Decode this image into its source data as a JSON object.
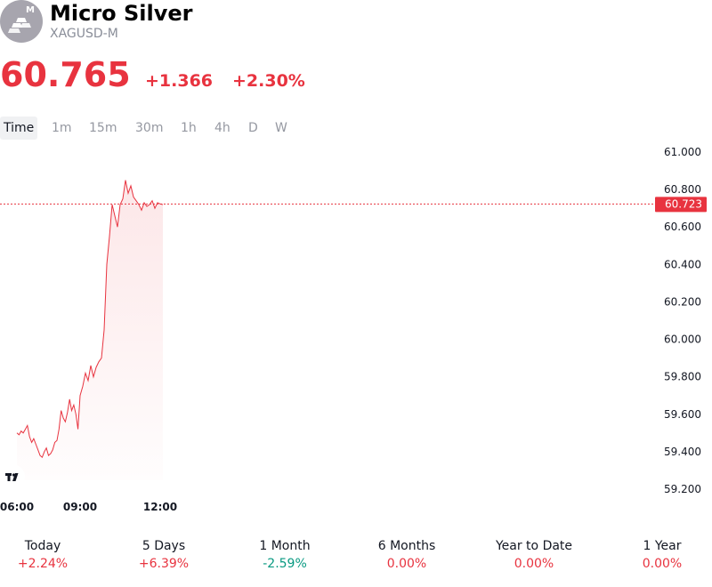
{
  "header": {
    "title": "Micro Silver",
    "symbol": "XAGUSD-M",
    "logo_badge": "M"
  },
  "quote": {
    "price": "60.765",
    "change": "+1.366",
    "change_pct": "+2.30%",
    "color": "#e8333f"
  },
  "tabs": [
    {
      "label": "Time",
      "active": true
    },
    {
      "label": "1m"
    },
    {
      "label": "15m"
    },
    {
      "label": "30m"
    },
    {
      "label": "1h"
    },
    {
      "label": "4h"
    },
    {
      "label": "D"
    },
    {
      "label": "W"
    }
  ],
  "chart_data": {
    "type": "area",
    "x_ticks": [
      "06:00",
      "09:00",
      "12:00"
    ],
    "y_ticks": [
      "61.000",
      "60.800",
      "60.600",
      "60.400",
      "60.200",
      "60.000",
      "59.800",
      "59.600",
      "59.400",
      "59.200"
    ],
    "y_range": [
      59.2,
      61.0
    ],
    "current_label": "60.723",
    "current_value": 60.723,
    "line_color": "#e8333f",
    "series": [
      {
        "x_hours": [
          6.0,
          6.1,
          6.2,
          6.3,
          6.4,
          6.5,
          6.6,
          6.7,
          6.8,
          6.9,
          7.0,
          7.1,
          7.2,
          7.3,
          7.4,
          7.5,
          7.6,
          7.7,
          7.8,
          7.9,
          8.0,
          8.1,
          8.2,
          8.3,
          8.4,
          8.5,
          8.6,
          8.7,
          8.8,
          8.9,
          9.0,
          9.1,
          9.2,
          9.3,
          9.4,
          9.5,
          9.6,
          9.7,
          9.8,
          9.9,
          10.0,
          10.1,
          10.2,
          10.3,
          10.4,
          10.5,
          10.6,
          10.7,
          10.8,
          10.9,
          11.0,
          11.1,
          11.2,
          11.3,
          11.4,
          11.5,
          11.6,
          11.7,
          11.8,
          11.9,
          12.0,
          12.1
        ],
        "values": [
          59.5,
          59.49,
          59.51,
          59.5,
          59.52,
          59.54,
          59.48,
          59.45,
          59.47,
          59.44,
          59.41,
          59.38,
          59.37,
          59.4,
          59.42,
          59.38,
          59.39,
          59.41,
          59.45,
          59.46,
          59.52,
          59.62,
          59.58,
          59.56,
          59.61,
          59.68,
          59.62,
          59.65,
          59.6,
          59.52,
          59.7,
          59.75,
          59.82,
          59.78,
          59.86,
          59.8,
          59.85,
          59.88,
          59.9,
          60.05,
          60.4,
          60.55,
          60.72,
          60.66,
          60.6,
          60.72,
          60.75,
          60.85,
          60.78,
          60.82,
          60.76,
          60.74,
          60.72,
          60.69,
          60.73,
          60.71,
          60.72,
          60.74,
          60.7,
          60.73,
          60.723,
          60.72
        ]
      }
    ]
  },
  "periods": [
    {
      "label": "Today",
      "value": "+2.24%",
      "color": "#e8333f"
    },
    {
      "label": "5 Days",
      "value": "+6.39%",
      "color": "#e8333f"
    },
    {
      "label": "1 Month",
      "value": "-2.59%",
      "color": "#089981"
    },
    {
      "label": "6 Months",
      "value": "0.00%",
      "color": "#e8333f"
    },
    {
      "label": "Year to Date",
      "value": "0.00%",
      "color": "#e8333f"
    },
    {
      "label": "1 Year",
      "value": "0.00%",
      "color": "#e8333f"
    }
  ]
}
